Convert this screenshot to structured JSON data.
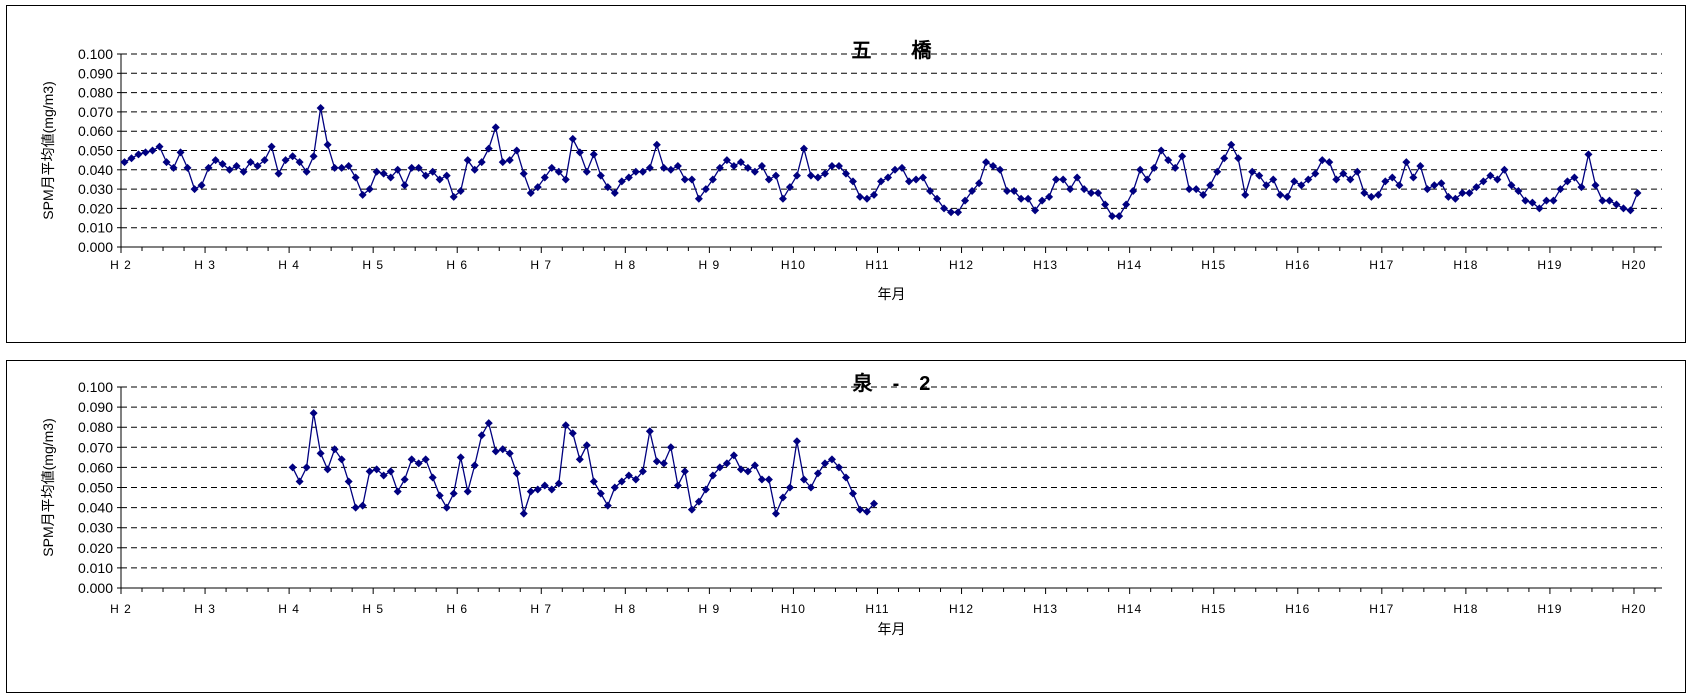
{
  "chart_data": [
    {
      "type": "line",
      "title": "五　　橋",
      "xlabel": "年月",
      "ylabel": "SPM月平均値(mg/m3)",
      "ylim": [
        0,
        0.1
      ],
      "yticks": [
        "0.000",
        "0.010",
        "0.020",
        "0.030",
        "0.040",
        "0.050",
        "0.060",
        "0.070",
        "0.080",
        "0.090",
        "0.100"
      ],
      "xticks": [
        "H 2",
        "H 3",
        "H 4",
        "H 5",
        "H 6",
        "H 7",
        "H 8",
        "H 9",
        "H10",
        "H11",
        "H12",
        "H13",
        "H14",
        "H15",
        "H16",
        "H17",
        "H18",
        "H19",
        "H20"
      ],
      "grid": "horizontal dashed",
      "series": [
        {
          "color": "#000080",
          "start_month_index": 0,
          "values": [
            0.044,
            0.046,
            0.048,
            0.049,
            0.05,
            0.052,
            0.044,
            0.041,
            0.049,
            0.041,
            0.03,
            0.032,
            0.041,
            0.045,
            0.043,
            0.04,
            0.042,
            0.039,
            0.044,
            0.042,
            0.045,
            0.052,
            0.038,
            0.045,
            0.047,
            0.044,
            0.039,
            0.047,
            0.072,
            0.053,
            0.041,
            0.041,
            0.042,
            0.036,
            0.027,
            0.03,
            0.039,
            0.038,
            0.036,
            0.04,
            0.032,
            0.041,
            0.041,
            0.037,
            0.039,
            0.035,
            0.037,
            0.026,
            0.029,
            0.045,
            0.04,
            0.044,
            0.051,
            0.062,
            0.044,
            0.045,
            0.05,
            0.038,
            0.028,
            0.031,
            0.036,
            0.041,
            0.039,
            0.035,
            0.056,
            0.049,
            0.039,
            0.048,
            0.037,
            0.031,
            0.028,
            0.034,
            0.036,
            0.039,
            0.039,
            0.041,
            0.053,
            0.041,
            0.04,
            0.042,
            0.035,
            0.035,
            0.025,
            0.03,
            0.035,
            0.041,
            0.045,
            0.042,
            0.044,
            0.041,
            0.039,
            0.042,
            0.035,
            0.037,
            0.025,
            0.031,
            0.037,
            0.051,
            0.037,
            0.036,
            0.038,
            0.042,
            0.042,
            0.038,
            0.034,
            0.026,
            0.025,
            0.027,
            0.034,
            0.036,
            0.04,
            0.041,
            0.034,
            0.035,
            0.036,
            0.029,
            0.025,
            0.02,
            0.018,
            0.018,
            0.024,
            0.029,
            0.033,
            0.044,
            0.042,
            0.04,
            0.029,
            0.029,
            0.025,
            0.025,
            0.019,
            0.024,
            0.026,
            0.035,
            0.035,
            0.03,
            0.036,
            0.03,
            0.028,
            0.028,
            0.022,
            0.016,
            0.016,
            0.022,
            0.029,
            0.04,
            0.035,
            0.041,
            0.05,
            0.045,
            0.041,
            0.047,
            0.03,
            0.03,
            0.027,
            0.032,
            0.039,
            0.046,
            0.053,
            0.046,
            0.027,
            0.039,
            0.037,
            0.032,
            0.035,
            0.027,
            0.026,
            0.034,
            0.032,
            0.035,
            0.038,
            0.045,
            0.044,
            0.035,
            0.038,
            0.035,
            0.039,
            0.028,
            0.026,
            0.027,
            0.034,
            0.036,
            0.032,
            0.044,
            0.036,
            0.042,
            0.03,
            0.032,
            0.033,
            0.026,
            0.025,
            0.028,
            0.028,
            0.031,
            0.034,
            0.037,
            0.035,
            0.04,
            0.032,
            0.029,
            0.024,
            0.023,
            0.02,
            0.024,
            0.024,
            0.03,
            0.034,
            0.036,
            0.031,
            0.048,
            0.032,
            0.024,
            0.024,
            0.022,
            0.02,
            0.019,
            0.028
          ]
        }
      ]
    },
    {
      "type": "line",
      "title": "泉　-　2",
      "xlabel": "年月",
      "ylabel": "SPM月平均値(mg/m3)",
      "ylim": [
        0,
        0.1
      ],
      "yticks": [
        "0.000",
        "0.010",
        "0.020",
        "0.030",
        "0.040",
        "0.050",
        "0.060",
        "0.070",
        "0.080",
        "0.090",
        "0.100"
      ],
      "xticks": [
        "H 2",
        "H 3",
        "H 4",
        "H 5",
        "H 6",
        "H 7",
        "H 8",
        "H 9",
        "H10",
        "H11",
        "H12",
        "H13",
        "H14",
        "H15",
        "H16",
        "H17",
        "H18",
        "H19",
        "H20"
      ],
      "grid": "horizontal dashed",
      "series": [
        {
          "color": "#000080",
          "start_month_index": 24,
          "values": [
            0.06,
            0.053,
            0.06,
            0.087,
            0.067,
            0.059,
            0.069,
            0.064,
            0.053,
            0.04,
            0.041,
            0.058,
            0.059,
            0.056,
            0.058,
            0.048,
            0.054,
            0.064,
            0.062,
            0.064,
            0.055,
            0.046,
            0.04,
            0.047,
            0.065,
            0.048,
            0.061,
            0.076,
            0.082,
            0.068,
            0.069,
            0.067,
            0.057,
            0.037,
            0.048,
            0.049,
            0.051,
            0.049,
            0.052,
            0.081,
            0.077,
            0.064,
            0.071,
            0.053,
            0.047,
            0.041,
            0.05,
            0.053,
            0.056,
            0.054,
            0.058,
            0.078,
            0.063,
            0.062,
            0.07,
            0.051,
            0.058,
            0.039,
            0.043,
            0.049,
            0.056,
            0.06,
            0.062,
            0.066,
            0.059,
            0.058,
            0.061,
            0.054,
            0.054,
            0.037,
            0.045,
            0.05,
            0.073,
            0.054,
            0.05,
            0.057,
            0.062,
            0.064,
            0.06,
            0.055,
            0.047,
            0.039,
            0.038,
            0.042
          ]
        }
      ]
    }
  ]
}
